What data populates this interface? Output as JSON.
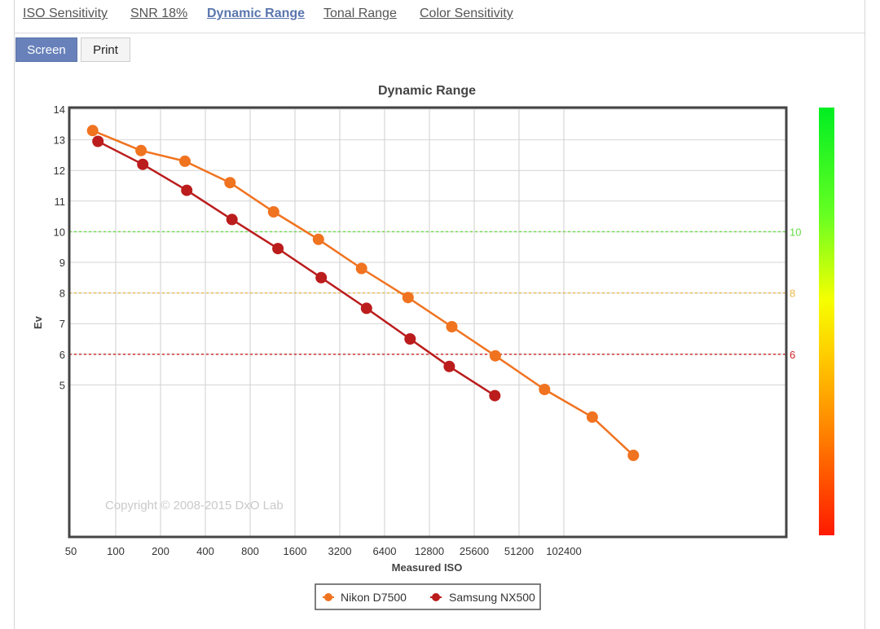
{
  "tabs": [
    {
      "label": "ISO Sensitivity"
    },
    {
      "label": "SNR 18%"
    },
    {
      "label": "Dynamic Range"
    },
    {
      "label": "Tonal Range"
    },
    {
      "label": "Color Sensitivity"
    }
  ],
  "active_tab": "Dynamic Range",
  "view_buttons": {
    "screen": "Screen",
    "print": "Print"
  },
  "watermark": "Copyright © 2008-2015 DxO Lab",
  "colors": {
    "accent": "#6881ba",
    "nikon": "#f07320",
    "samsung": "#bb1c1c",
    "ref_10": "#66dd44",
    "ref_8": "#e8b84a",
    "ref_6": "#cc2222"
  },
  "chart_data": {
    "type": "line",
    "title": "Dynamic Range",
    "xlabel": "Measured ISO",
    "ylabel": "Ev",
    "x_scale": "log2",
    "x_ticks": [
      "50",
      "100",
      "200",
      "400",
      "800",
      "1600",
      "3200",
      "6400",
      "12800",
      "25600",
      "51200",
      "102400"
    ],
    "y_ticks": [
      "14",
      "13",
      "12",
      "11",
      "10",
      "9",
      "8",
      "7",
      "6",
      "5"
    ],
    "ylim": [
      0,
      14
    ],
    "reference_lines": [
      {
        "value": 10,
        "label": "10",
        "color": "#66dd44"
      },
      {
        "value": 8,
        "label": "8",
        "color": "#e8b84a"
      },
      {
        "value": 6,
        "label": "6",
        "color": "#cc2222"
      }
    ],
    "grid": true,
    "legend_position": "bottom-center",
    "series": [
      {
        "name": "Nikon D7500",
        "color": "#f07320",
        "points": [
          [
            70,
            13.3
          ],
          [
            148,
            12.65
          ],
          [
            292,
            12.3
          ],
          [
            586,
            11.6
          ],
          [
            1150,
            10.65
          ],
          [
            2300,
            9.75
          ],
          [
            4480,
            8.8
          ],
          [
            9200,
            7.85
          ],
          [
            18100,
            6.9
          ],
          [
            35500,
            5.95
          ],
          [
            76000,
            4.85
          ],
          [
            159000,
            3.95
          ],
          [
            300000,
            2.7
          ]
        ]
      },
      {
        "name": "Samsung NX500",
        "color": "#bb1c1c",
        "points": [
          [
            76,
            12.95
          ],
          [
            152,
            12.2
          ],
          [
            300,
            11.35
          ],
          [
            604,
            10.4
          ],
          [
            1230,
            9.45
          ],
          [
            2400,
            8.5
          ],
          [
            4840,
            7.5
          ],
          [
            9500,
            6.5
          ],
          [
            17400,
            5.6
          ],
          [
            35200,
            4.65
          ]
        ]
      }
    ]
  }
}
